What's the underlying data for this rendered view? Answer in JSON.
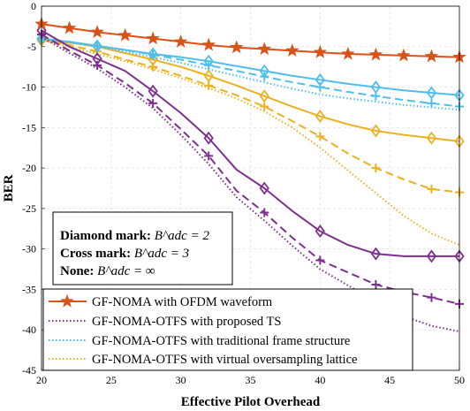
{
  "chart_data": {
    "type": "line",
    "xlabel": "Effective Pilot Overhead",
    "ylabel": "BER",
    "xlim": [
      20,
      50
    ],
    "ylim": [
      -45,
      0
    ],
    "xticks": [
      20,
      25,
      30,
      35,
      40,
      45,
      50
    ],
    "yticks": [
      0,
      -5,
      -10,
      -15,
      -20,
      -25,
      -30,
      -35,
      -40,
      -45
    ],
    "grid": true,
    "legend_position": "bottom-left",
    "annotation": [
      {
        "label": "Diamond mark",
        "value": "B^adc = 2"
      },
      {
        "label": "Cross mark",
        "value": "B^adc = 3"
      },
      {
        "label": "None",
        "value": "B^adc = ∞"
      }
    ],
    "legend": [
      {
        "label": "GF-NOMA with OFDM waveform",
        "color": "#d95319",
        "style": "solid",
        "marker": "star"
      },
      {
        "label": "GF-NOMA-OTFS with proposed TS",
        "color": "#7e2f8e",
        "style": "dotted",
        "marker": "none"
      },
      {
        "label": "GF-NOMA-OTFS with traditional frame structure",
        "color": "#4dbeee",
        "style": "dotted",
        "marker": "none"
      },
      {
        "label": "GF-NOMA-OTFS with virtual oversampling lattice",
        "color": "#edb120",
        "style": "dotted",
        "marker": "none"
      }
    ],
    "series": [
      {
        "color": "#d95319",
        "style": "solid",
        "marker": "star",
        "x": [
          20,
          22,
          24,
          26,
          28,
          30,
          32,
          34,
          36,
          38,
          40,
          42,
          44,
          46,
          48,
          50
        ],
        "y": [
          -2.2,
          -2.7,
          -3.2,
          -3.6,
          -4.0,
          -4.4,
          -4.8,
          -5.1,
          -5.3,
          -5.5,
          -5.7,
          -5.9,
          -6.0,
          -6.1,
          -6.2,
          -6.3
        ]
      },
      {
        "color": "#7e2f8e",
        "style": "solid",
        "marker": "diamond",
        "x": [
          20,
          22,
          24,
          26,
          28,
          30,
          32,
          34,
          36,
          38,
          40,
          42,
          44,
          46,
          48,
          50
        ],
        "y": [
          -3.0,
          -5.0,
          -6.5,
          -8.0,
          -10.5,
          -13.2,
          -16.3,
          -20.2,
          -22.5,
          -25.3,
          -27.8,
          -29.5,
          -30.6,
          -30.9,
          -30.9,
          -30.9
        ]
      },
      {
        "color": "#7e2f8e",
        "style": "dashed",
        "marker": "cross",
        "x": [
          20,
          22,
          24,
          26,
          28,
          30,
          32,
          34,
          36,
          38,
          40,
          42,
          44,
          46,
          48,
          50
        ],
        "y": [
          -3.5,
          -5.5,
          -7.3,
          -9.5,
          -12.0,
          -15.2,
          -18.5,
          -22.8,
          -25.5,
          -28.6,
          -31.4,
          -32.9,
          -34.4,
          -35.3,
          -36.0,
          -36.8
        ]
      },
      {
        "color": "#7e2f8e",
        "style": "dotted",
        "marker": "none",
        "x": [
          20,
          22,
          24,
          26,
          28,
          30,
          32,
          34,
          36,
          38,
          40,
          42,
          44,
          46,
          48,
          50
        ],
        "y": [
          -3.8,
          -5.8,
          -7.7,
          -10.0,
          -12.6,
          -15.9,
          -19.5,
          -23.6,
          -26.5,
          -29.6,
          -32.5,
          -34.5,
          -36.5,
          -38.3,
          -39.5,
          -40.2
        ]
      },
      {
        "color": "#4dbeee",
        "style": "solid",
        "marker": "diamond",
        "x": [
          20,
          22,
          24,
          26,
          28,
          30,
          32,
          34,
          36,
          38,
          40,
          42,
          44,
          46,
          48,
          50
        ],
        "y": [
          -4.0,
          -4.4,
          -4.9,
          -5.4,
          -5.9,
          -6.3,
          -6.8,
          -7.4,
          -8.0,
          -8.6,
          -9.1,
          -9.6,
          -10.0,
          -10.4,
          -10.7,
          -11.0
        ]
      },
      {
        "color": "#4dbeee",
        "style": "dashed",
        "marker": "cross",
        "x": [
          20,
          22,
          24,
          26,
          28,
          30,
          32,
          34,
          36,
          38,
          40,
          42,
          44,
          46,
          48,
          50
        ],
        "y": [
          -4.0,
          -4.4,
          -4.9,
          -5.4,
          -6.0,
          -6.6,
          -7.3,
          -8.0,
          -8.7,
          -9.4,
          -10.0,
          -10.6,
          -11.1,
          -11.6,
          -12.0,
          -12.4
        ]
      },
      {
        "color": "#4dbeee",
        "style": "dotted",
        "marker": "none",
        "x": [
          20,
          22,
          24,
          26,
          28,
          30,
          32,
          34,
          36,
          38,
          40,
          42,
          44,
          46,
          48,
          50
        ],
        "y": [
          -4.0,
          -4.5,
          -5.0,
          -5.6,
          -6.3,
          -7.0,
          -7.8,
          -8.6,
          -9.4,
          -10.2,
          -10.9,
          -11.4,
          -11.8,
          -12.2,
          -12.5,
          -12.8
        ]
      },
      {
        "color": "#edb120",
        "style": "solid",
        "marker": "diamond",
        "x": [
          20,
          22,
          24,
          26,
          28,
          30,
          32,
          34,
          36,
          38,
          40,
          42,
          44,
          46,
          48,
          50
        ],
        "y": [
          -4.2,
          -4.5,
          -5.0,
          -5.8,
          -6.6,
          -7.5,
          -8.6,
          -9.8,
          -11.1,
          -12.4,
          -13.6,
          -14.6,
          -15.4,
          -15.9,
          -16.3,
          -16.7
        ]
      },
      {
        "color": "#edb120",
        "style": "dashed",
        "marker": "cross",
        "x": [
          20,
          22,
          24,
          26,
          28,
          30,
          32,
          34,
          36,
          38,
          40,
          42,
          44,
          46,
          48,
          50
        ],
        "y": [
          -4.2,
          -4.8,
          -5.6,
          -6.6,
          -7.5,
          -8.6,
          -9.8,
          -11.0,
          -12.4,
          -14.2,
          -16.1,
          -18.2,
          -20.0,
          -21.4,
          -22.6,
          -23.0
        ]
      },
      {
        "color": "#edb120",
        "style": "dotted",
        "marker": "none",
        "x": [
          20,
          22,
          24,
          26,
          28,
          30,
          32,
          34,
          36,
          38,
          40,
          42,
          44,
          46,
          48,
          50
        ],
        "y": [
          -4.2,
          -5.0,
          -5.9,
          -6.8,
          -7.8,
          -8.9,
          -10.1,
          -11.4,
          -13.0,
          -15.0,
          -17.5,
          -20.3,
          -23.1,
          -25.9,
          -28.1,
          -29.5
        ]
      }
    ]
  }
}
